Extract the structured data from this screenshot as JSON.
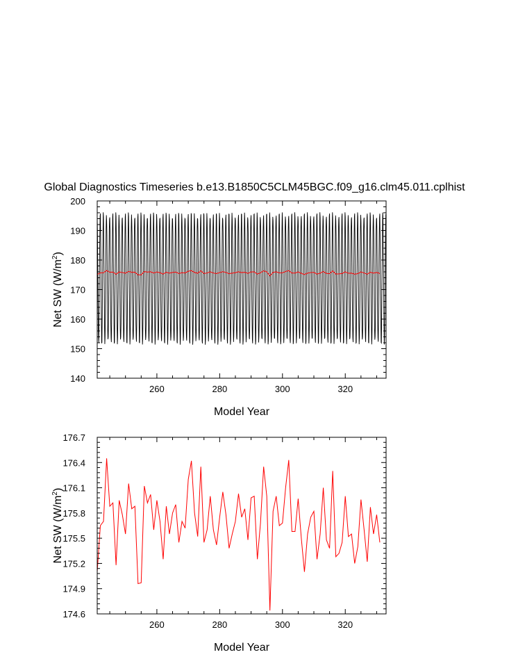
{
  "title": "Global Diagnostics Timeseries b.e13.B1850C5CLM45BGC.f09_g16.clm45.011.cplhist",
  "colors": {
    "monthly": "#000000",
    "annual": "#ff0000"
  },
  "chart_data": [
    {
      "type": "line",
      "xlabel": "Model Year",
      "ylabel": "Net SW (W/m",
      "ylabel_sup": "2",
      "ylabel_close": ")",
      "xlim": [
        241,
        333
      ],
      "ylim": [
        140,
        200
      ],
      "xticks": [
        "260",
        "280",
        "300",
        "320"
      ],
      "yticks": [
        "140",
        "150",
        "160",
        "170",
        "180",
        "190",
        "200"
      ],
      "series": [
        {
          "type": "line",
          "seasonal_min": 152,
          "seasonal_max": 195.5,
          "color": "#000000"
        },
        {
          "type": "line",
          "color": "#ff0000",
          "values_ref": "annual"
        }
      ]
    },
    {
      "type": "line",
      "xlabel": "Model Year",
      "ylabel": "Net SW (W/m",
      "ylabel_sup": "2",
      "ylabel_close": ")",
      "xlim": [
        241,
        333
      ],
      "ylim": [
        174.6,
        176.7
      ],
      "xticks": [
        "260",
        "280",
        "300",
        "320"
      ],
      "yticks": [
        "174.6",
        "174.9",
        "175.2",
        "175.5",
        "175.8",
        "176.1",
        "176.4",
        "176.7"
      ],
      "series": [
        {
          "type": "line",
          "color": "#ff0000",
          "x_start": 241,
          "values": [
            175.1,
            175.65,
            175.7,
            176.45,
            175.88,
            175.92,
            175.18,
            175.95,
            175.78,
            175.55,
            176.15,
            175.85,
            175.88,
            174.96,
            174.97,
            176.12,
            175.92,
            176.02,
            175.6,
            175.95,
            175.7,
            175.25,
            175.88,
            175.55,
            175.8,
            175.9,
            175.45,
            175.7,
            175.62,
            176.2,
            176.42,
            175.8,
            175.52,
            176.35,
            175.45,
            175.6,
            176.0,
            175.6,
            175.42,
            175.75,
            176.05,
            175.78,
            175.38,
            175.55,
            175.7,
            176.03,
            175.75,
            175.85,
            175.48,
            175.98,
            176.0,
            175.25,
            175.68,
            176.35,
            176.0,
            174.64,
            175.82,
            176.0,
            175.65,
            175.68,
            176.1,
            176.43,
            175.58,
            175.58,
            175.97,
            175.5,
            175.1,
            175.55,
            175.75,
            175.82,
            175.25,
            175.55,
            176.1,
            175.48,
            175.38,
            176.3,
            175.28,
            175.32,
            175.45,
            176.0,
            175.52,
            175.55,
            175.2,
            175.4,
            175.96,
            175.6,
            175.22,
            175.87,
            175.55,
            175.78,
            175.45
          ]
        }
      ]
    }
  ]
}
